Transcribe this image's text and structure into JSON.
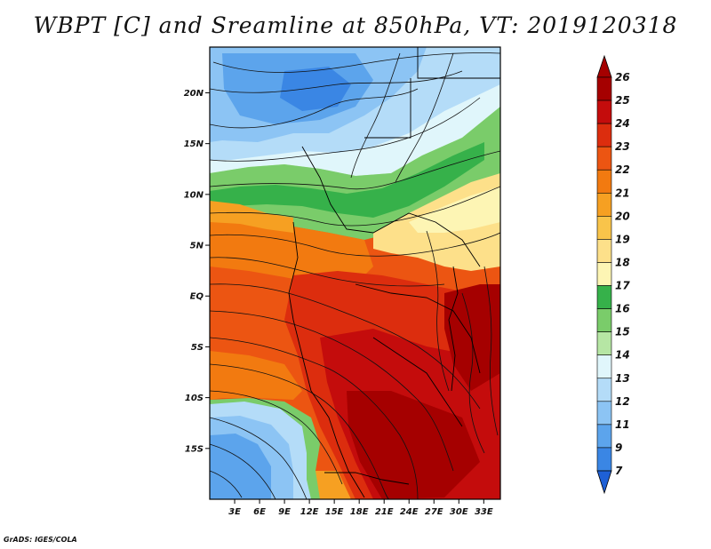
{
  "title": "WBPT [C] and Sreamline at 850hPa, VT: 2019120318",
  "footer": "GrADS: IGES/COLA",
  "map": {
    "lat_range": [
      -20,
      24.5
    ],
    "lon_range": [
      0,
      35
    ],
    "lat_ticks": [
      {
        "value": 20,
        "label": "20N"
      },
      {
        "value": 15,
        "label": "15N"
      },
      {
        "value": 10,
        "label": "10N"
      },
      {
        "value": 5,
        "label": "5N"
      },
      {
        "value": 0,
        "label": "EQ"
      },
      {
        "value": -5,
        "label": "5S"
      },
      {
        "value": -10,
        "label": "10S"
      },
      {
        "value": -15,
        "label": "15S"
      }
    ],
    "lon_ticks": [
      {
        "value": 3,
        "label": "3E"
      },
      {
        "value": 6,
        "label": "6E"
      },
      {
        "value": 9,
        "label": "9E"
      },
      {
        "value": 12,
        "label": "12E"
      },
      {
        "value": 15,
        "label": "15E"
      },
      {
        "value": 18,
        "label": "18E"
      },
      {
        "value": 21,
        "label": "21E"
      },
      {
        "value": 24,
        "label": "24E"
      },
      {
        "value": 27,
        "label": "27E"
      },
      {
        "value": 30,
        "label": "30E"
      },
      {
        "value": 33,
        "label": "33E"
      }
    ]
  },
  "colorbar": {
    "levels": [
      {
        "label": "26",
        "color": "#a50000"
      },
      {
        "label": "25",
        "color": "#c40c0c"
      },
      {
        "label": "24",
        "color": "#dc2d0e"
      },
      {
        "label": "23",
        "color": "#ec5512"
      },
      {
        "label": "22",
        "color": "#f27a10"
      },
      {
        "label": "21",
        "color": "#f6a022"
      },
      {
        "label": "20",
        "color": "#f9c44a"
      },
      {
        "label": "19",
        "color": "#fde08a"
      },
      {
        "label": "18",
        "color": "#fdf5b4"
      },
      {
        "label": "17",
        "color": "#36b14a"
      },
      {
        "label": "16",
        "color": "#7acc6a"
      },
      {
        "label": "15",
        "color": "#b6e6a4"
      },
      {
        "label": "14",
        "color": "#e0f6fb"
      },
      {
        "label": "13",
        "color": "#b4dcf8"
      },
      {
        "label": "12",
        "color": "#8cc4f4"
      },
      {
        "label": "11",
        "color": "#5ca4ec"
      },
      {
        "label": "9",
        "color": "#3a86e4"
      },
      {
        "label": "7",
        "color": "#1e60d6"
      }
    ],
    "tip_top_color": "#a50000",
    "tip_bottom_color": "#1e60d6"
  }
}
